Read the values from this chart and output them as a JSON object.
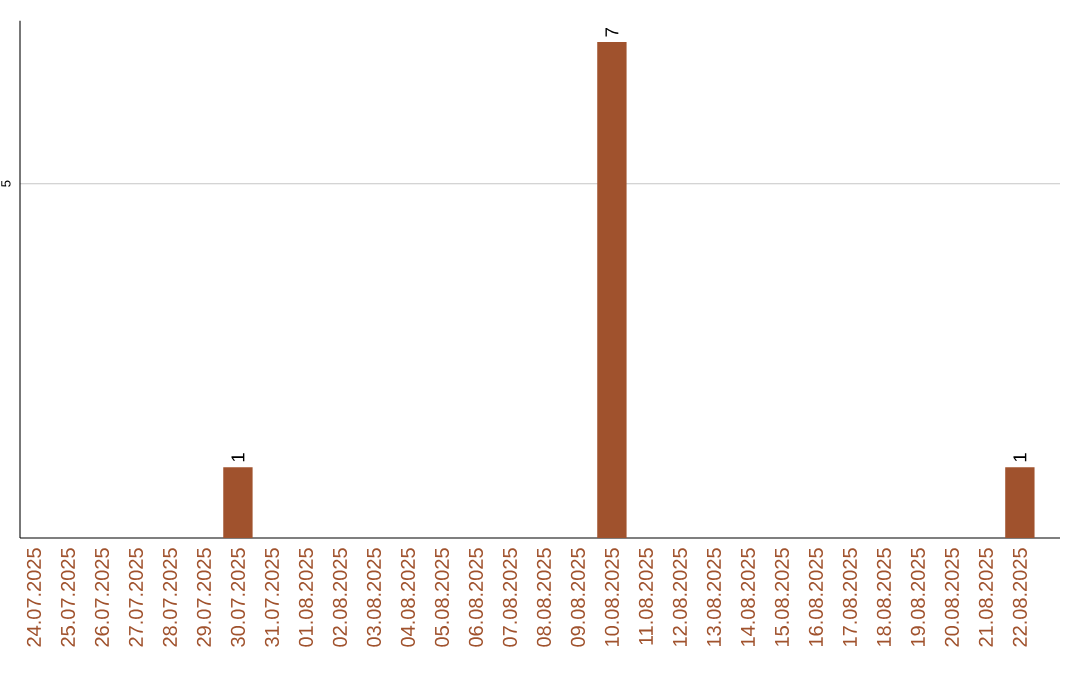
{
  "chart_data": {
    "type": "bar",
    "categories": [
      "24.07.2025",
      "25.07.2025",
      "26.07.2025",
      "27.07.2025",
      "28.07.2025",
      "29.07.2025",
      "30.07.2025",
      "31.07.2025",
      "01.08.2025",
      "02.08.2025",
      "03.08.2025",
      "04.08.2025",
      "05.08.2025",
      "06.08.2025",
      "07.08.2025",
      "08.08.2025",
      "09.08.2025",
      "10.08.2025",
      "11.08.2025",
      "12.08.2025",
      "13.08.2025",
      "14.08.2025",
      "15.08.2025",
      "16.08.2025",
      "17.08.2025",
      "18.08.2025",
      "19.08.2025",
      "20.08.2025",
      "21.08.2025",
      "22.08.2025"
    ],
    "values": [
      0,
      0,
      0,
      0,
      0,
      0,
      1,
      0,
      0,
      0,
      0,
      0,
      0,
      0,
      0,
      0,
      0,
      7,
      0,
      0,
      0,
      0,
      0,
      0,
      0,
      0,
      0,
      0,
      0,
      1
    ],
    "value_labels": [
      null,
      null,
      null,
      null,
      null,
      null,
      "1",
      null,
      null,
      null,
      null,
      null,
      null,
      null,
      null,
      null,
      null,
      "7",
      null,
      null,
      null,
      null,
      null,
      null,
      null,
      null,
      null,
      null,
      null,
      "1"
    ],
    "color": "#a0522d",
    "ylim": [
      0,
      7.3
    ],
    "yticks": [
      5
    ],
    "grid": "y"
  }
}
